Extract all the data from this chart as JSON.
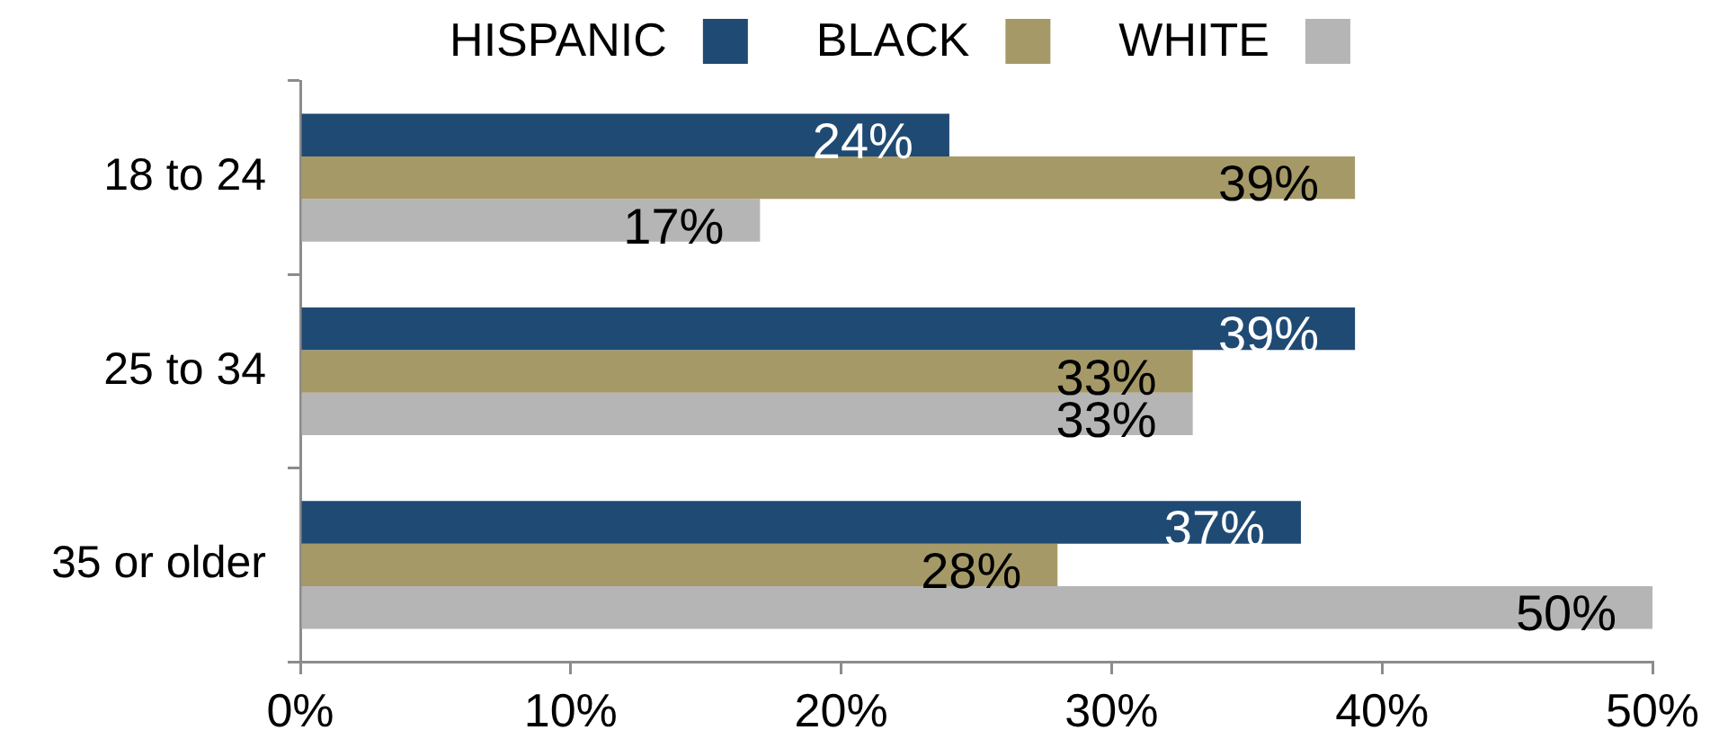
{
  "chart_data": {
    "type": "bar",
    "orientation": "horizontal",
    "categories": [
      "18 to 24",
      "25 to 34",
      "35 or older"
    ],
    "series": [
      {
        "name": "HISPANIC",
        "color": "#1f4a73",
        "values": [
          24,
          39,
          37
        ],
        "value_labels": [
          "24%",
          "39%",
          "37%"
        ]
      },
      {
        "name": "BLACK",
        "color": "#a59a67",
        "values": [
          39,
          33,
          28
        ],
        "value_labels": [
          "39%",
          "33%",
          "28%"
        ]
      },
      {
        "name": "WHITE",
        "color": "#b5b5b5",
        "values": [
          17,
          33,
          50
        ],
        "value_labels": [
          "17%",
          "33%",
          "50%"
        ]
      }
    ],
    "xlim": [
      0,
      50
    ],
    "xticks": [
      {
        "value": 0,
        "label": "0%"
      },
      {
        "value": 10,
        "label": "10%"
      },
      {
        "value": 20,
        "label": "20%"
      },
      {
        "value": 30,
        "label": "30%"
      },
      {
        "value": 40,
        "label": "40%"
      },
      {
        "value": 50,
        "label": "50%"
      }
    ],
    "legend": "top"
  }
}
